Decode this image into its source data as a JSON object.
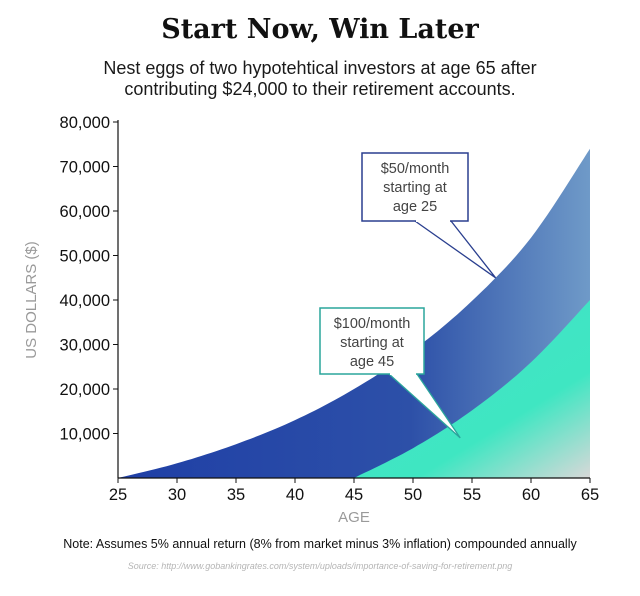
{
  "title": "Start Now, Win Later",
  "subtitle": "Nest eggs of two hypotehtical investors at age 65 after contributing $24,000 to their retirement accounts.",
  "note": "Note: Assumes 5% annual return (8% from market minus 3% inflation) compounded annually",
  "source": "Source: http://www.gobankingrates.com/system/uploads/importance-of-saving-for-retirement.png",
  "colors": {
    "series1_dark": "#1f3fa6",
    "series1_light": "#6f9ac8",
    "series2_light": "#d8d8d8",
    "series2_dark": "#3fe6c2",
    "callout1_border": "#2a3f8f",
    "callout2_border": "#2aa59c",
    "axis": "#111111"
  },
  "chart_data": {
    "type": "area",
    "xlabel": "AGE",
    "ylabel": "US DOLLARS ($)",
    "xlim": [
      25,
      65
    ],
    "ylim": [
      0,
      80000
    ],
    "x_ticks": [
      "25",
      "30",
      "35",
      "40",
      "45",
      "50",
      "55",
      "60",
      "65"
    ],
    "y_ticks": [
      "10,000",
      "20,000",
      "30,000",
      "40,000",
      "50,000",
      "60,000",
      "70,000",
      "80,000"
    ],
    "x_tick_values": [
      25,
      30,
      35,
      40,
      45,
      50,
      55,
      60,
      65
    ],
    "y_tick_values": [
      10000,
      20000,
      30000,
      40000,
      50000,
      60000,
      70000,
      80000
    ],
    "series": [
      {
        "name": "$50/month starting at age 25",
        "x": [
          25,
          30,
          35,
          40,
          45,
          50,
          55,
          60,
          65
        ],
        "values": [
          0,
          3300,
          7600,
          13000,
          20000,
          28700,
          39800,
          54000,
          74000
        ]
      },
      {
        "name": "$100/month starting at age 45",
        "x": [
          45,
          50,
          55,
          60,
          65
        ],
        "values": [
          0,
          6700,
          15200,
          26000,
          40000
        ]
      }
    ],
    "annotations": [
      {
        "lines": [
          "$50/month",
          "starting at",
          "age 25"
        ],
        "points_to": {
          "x": 57,
          "y": 45000
        }
      },
      {
        "lines": [
          "$100/month",
          "starting at",
          "age 45"
        ],
        "points_to": {
          "x": 54,
          "y": 9000
        }
      }
    ]
  }
}
